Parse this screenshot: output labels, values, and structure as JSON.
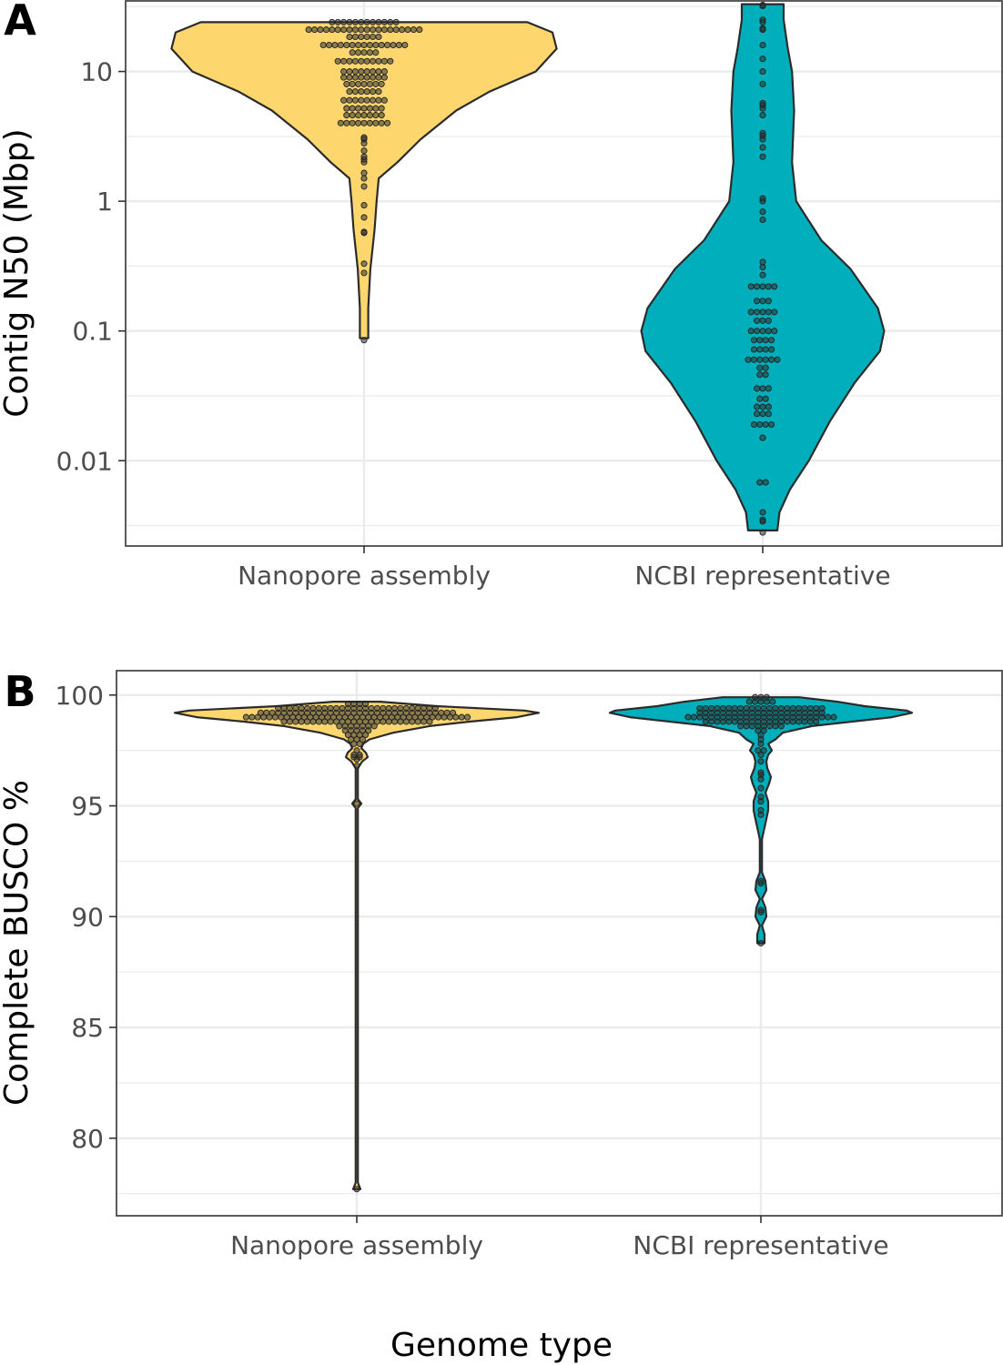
{
  "figure": {
    "xlabel": "Genome type",
    "colors": {
      "nanopore": "#FDD76E",
      "ncbi": "#00AFBB"
    }
  },
  "chart_data": [
    {
      "type": "violin",
      "panel_label": "A",
      "title": "",
      "xlabel": "Genome type",
      "ylabel": "Contig N50 (Mbp)",
      "yscale": "log10",
      "ylim": [
        0.0022,
        35
      ],
      "yticks": [
        {
          "value": 0.01,
          "label": "0.01"
        },
        {
          "value": 0.1,
          "label": "0.1"
        },
        {
          "value": 1,
          "label": "1"
        },
        {
          "value": 10,
          "label": "10"
        }
      ],
      "categories": [
        "Nanopore assembly",
        "NCBI representative"
      ],
      "series": [
        {
          "name": "Nanopore assembly",
          "color": "#FDD76E",
          "violin": {
            "min": 0.088,
            "max": 24,
            "density": [
              [
                24,
                0.78
              ],
              [
                20,
                0.9
              ],
              [
                15,
                0.92
              ],
              [
                10,
                0.82
              ],
              [
                7,
                0.6
              ],
              [
                5,
                0.44
              ],
              [
                3,
                0.27
              ],
              [
                2,
                0.16
              ],
              [
                1.5,
                0.07
              ],
              [
                1,
                0.06
              ],
              [
                0.6,
                0.05
              ],
              [
                0.3,
                0.03
              ],
              [
                0.15,
                0.02
              ],
              [
                0.1,
                0.02
              ],
              [
                0.088,
                0.02
              ]
            ]
          },
          "values": [
            0.085,
            0.28,
            0.33,
            0.57,
            0.58,
            0.75,
            0.93,
            1.3,
            1.5,
            1.65,
            2.0,
            2.1,
            2.2,
            2.45,
            2.8,
            3.0,
            3.1,
            4.0,
            4.0,
            4.0,
            4.0,
            4.0,
            4.0,
            4.0,
            4.0,
            4.0,
            4.6,
            4.6,
            4.6,
            4.6,
            4.6,
            4.6,
            4.6,
            5.2,
            5.2,
            5.2,
            5.2,
            5.2,
            5.2,
            5.2,
            6.0,
            6.0,
            6.0,
            6.0,
            6.0,
            6.0,
            6.0,
            6.0,
            7.0,
            7.0,
            7.0,
            7.0,
            7.0,
            7.0,
            8.0,
            8.0,
            8.0,
            8.0,
            8.0,
            8.0,
            8.0,
            9.0,
            9.0,
            9.0,
            9.0,
            9.0,
            9.0,
            9.0,
            9.0,
            10.0,
            10.0,
            10.0,
            10.0,
            10.0,
            10.0,
            10.0,
            10.0,
            12.0,
            12.0,
            12.0,
            12.0,
            12.0,
            12.0,
            12.0,
            12.0,
            12.0,
            12.0,
            14.0,
            14.0,
            14.0,
            14.0,
            14.0,
            16.0,
            16.0,
            16.0,
            16.0,
            16.0,
            16.0,
            16.0,
            16.0,
            16.0,
            16.0,
            16.0,
            16.0,
            16.0,
            16.0,
            16.0,
            18.5,
            18.5,
            18.5,
            18.5,
            18.5,
            18.5,
            21.0,
            21.0,
            21.0,
            21.0,
            21.0,
            21.0,
            21.0,
            21.0,
            21.0,
            21.0,
            21.0,
            21.0,
            21.0,
            21.0,
            21.0,
            21.0,
            21.0,
            21.0,
            21.0,
            21.0,
            24.0,
            24.0,
            24.0,
            24.0,
            24.0,
            24.0,
            24.0,
            24.0,
            24.0,
            24.0,
            24.0,
            24.0
          ]
        },
        {
          "name": "NCBI representative",
          "color": "#00AFBB",
          "violin": {
            "min": 0.0029,
            "max": 33,
            "density": [
              [
                33,
                0.1
              ],
              [
                25,
                0.1
              ],
              [
                15,
                0.12
              ],
              [
                10,
                0.14
              ],
              [
                5,
                0.15
              ],
              [
                2,
                0.14
              ],
              [
                1,
                0.16
              ],
              [
                0.5,
                0.28
              ],
              [
                0.3,
                0.42
              ],
              [
                0.15,
                0.55
              ],
              [
                0.1,
                0.58
              ],
              [
                0.07,
                0.56
              ],
              [
                0.04,
                0.44
              ],
              [
                0.02,
                0.32
              ],
              [
                0.01,
                0.22
              ],
              [
                0.006,
                0.13
              ],
              [
                0.004,
                0.08
              ],
              [
                0.0029,
                0.07
              ]
            ]
          },
          "values": [
            0.0028,
            0.0034,
            0.0035,
            0.004,
            0.0068,
            0.0068,
            0.015,
            0.019,
            0.019,
            0.019,
            0.019,
            0.023,
            0.023,
            0.023,
            0.026,
            0.026,
            0.026,
            0.03,
            0.03,
            0.036,
            0.036,
            0.036,
            0.046,
            0.046,
            0.052,
            0.052,
            0.06,
            0.06,
            0.06,
            0.06,
            0.06,
            0.06,
            0.072,
            0.072,
            0.072,
            0.072,
            0.085,
            0.085,
            0.085,
            0.085,
            0.1,
            0.1,
            0.1,
            0.1,
            0.1,
            0.12,
            0.12,
            0.12,
            0.14,
            0.14,
            0.14,
            0.14,
            0.14,
            0.17,
            0.17,
            0.17,
            0.22,
            0.22,
            0.22,
            0.22,
            0.22,
            0.27,
            0.31,
            0.34,
            0.72,
            0.83,
            1.0,
            1.05,
            2.2,
            2.6,
            3.0,
            3.2,
            3.35,
            4.6,
            5.2,
            5.5,
            5.7,
            8.0,
            10.0,
            12.5,
            16.0,
            21.0,
            21.5,
            24.0,
            25.0,
            32.0,
            32.5
          ]
        }
      ]
    },
    {
      "type": "violin",
      "panel_label": "B",
      "title": "",
      "xlabel": "Genome type",
      "ylabel": "Complete BUSCO %",
      "yscale": "linear",
      "ylim": [
        76.5,
        101.1
      ],
      "yticks": [
        {
          "value": 80,
          "label": "80"
        },
        {
          "value": 85,
          "label": "85"
        },
        {
          "value": 90,
          "label": "90"
        },
        {
          "value": 95,
          "label": "95"
        },
        {
          "value": 100,
          "label": "100"
        }
      ],
      "categories": [
        "Nanopore assembly",
        "NCBI representative"
      ],
      "series": [
        {
          "name": "Nanopore assembly",
          "color": "#FDD76E",
          "violin": {
            "min": 77.7,
            "max": 99.7,
            "density": [
              [
                99.7,
                0.13
              ],
              [
                99.5,
                0.44
              ],
              [
                99.3,
                0.92
              ],
              [
                99.2,
                1.0
              ],
              [
                99.0,
                0.88
              ],
              [
                98.8,
                0.62
              ],
              [
                98.6,
                0.4
              ],
              [
                98.3,
                0.2
              ],
              [
                98.0,
                0.07
              ],
              [
                97.8,
                0.035
              ],
              [
                97.6,
                0.025
              ],
              [
                97.4,
                0.05
              ],
              [
                97.2,
                0.06
              ],
              [
                97.0,
                0.03
              ],
              [
                96.7,
                0.006
              ],
              [
                96.5,
                0.006
              ],
              [
                95.3,
                0.006
              ],
              [
                95.1,
                0.025
              ],
              [
                94.9,
                0.006
              ],
              [
                78.0,
                0.006
              ],
              [
                77.7,
                0.02
              ]
            ]
          },
          "values": [
            77.7,
            95.1,
            96.8,
            97.1,
            97.2,
            97.2,
            97.3,
            97.3,
            97.5,
            97.8,
            97.8,
            98.0,
            98.0,
            98.0,
            98.2,
            98.2,
            98.2,
            98.2,
            98.4,
            98.4,
            98.4,
            98.4,
            98.4,
            98.6,
            98.6,
            98.6,
            98.6,
            98.6,
            98.6,
            98.6,
            98.8,
            98.8,
            98.8,
            98.8,
            98.8,
            98.8,
            98.8,
            98.8,
            98.8,
            98.8,
            98.8,
            98.8,
            98.8,
            98.8,
            98.8,
            98.8,
            98.8,
            98.8,
            98.8,
            98.8,
            98.8,
            98.8,
            98.8,
            98.8,
            98.8,
            98.8,
            99.0,
            99.0,
            99.0,
            99.0,
            99.0,
            99.0,
            99.0,
            99.0,
            99.0,
            99.0,
            99.0,
            99.0,
            99.0,
            99.0,
            99.0,
            99.0,
            99.0,
            99.0,
            99.0,
            99.0,
            99.0,
            99.0,
            99.0,
            99.0,
            99.0,
            99.0,
            99.0,
            99.0,
            99.0,
            99.0,
            99.0,
            99.0,
            99.0,
            99.0,
            99.0,
            99.0,
            99.0,
            99.0,
            99.0,
            99.2,
            99.2,
            99.2,
            99.2,
            99.2,
            99.2,
            99.2,
            99.2,
            99.2,
            99.2,
            99.2,
            99.2,
            99.2,
            99.2,
            99.2,
            99.2,
            99.2,
            99.2,
            99.2,
            99.2,
            99.2,
            99.2,
            99.2,
            99.2,
            99.2,
            99.2,
            99.2,
            99.2,
            99.2,
            99.2,
            99.2,
            99.2,
            99.2,
            99.2,
            99.4,
            99.4,
            99.4,
            99.4,
            99.4,
            99.4,
            99.4,
            99.4,
            99.4,
            99.4,
            99.4,
            99.4,
            99.4,
            99.4,
            99.4,
            99.4,
            99.4,
            99.4,
            99.4,
            99.4,
            99.4,
            99.4,
            99.4,
            99.4,
            99.4,
            99.4,
            99.4,
            99.4,
            99.6,
            99.6,
            99.6,
            99.6
          ]
        },
        {
          "name": "NCBI representative",
          "color": "#00AFBB",
          "violin": {
            "min": 88.8,
            "max": 99.9,
            "density": [
              [
                99.9,
                0.21
              ],
              [
                99.7,
                0.42
              ],
              [
                99.5,
                0.57
              ],
              [
                99.3,
                0.8
              ],
              [
                99.2,
                0.83
              ],
              [
                99.0,
                0.72
              ],
              [
                98.8,
                0.5
              ],
              [
                98.6,
                0.28
              ],
              [
                98.3,
                0.12
              ],
              [
                98.0,
                0.08
              ],
              [
                97.8,
                0.04
              ],
              [
                97.5,
                0.06
              ],
              [
                97.3,
                0.04
              ],
              [
                97.0,
                0.03
              ],
              [
                96.7,
                0.035
              ],
              [
                96.3,
                0.055
              ],
              [
                96.0,
                0.045
              ],
              [
                95.6,
                0.025
              ],
              [
                95.2,
                0.04
              ],
              [
                94.8,
                0.04
              ],
              [
                94.4,
                0.03
              ],
              [
                93.5,
                0.006
              ],
              [
                92.0,
                0.006
              ],
              [
                91.6,
                0.025
              ],
              [
                91.2,
                0.03
              ],
              [
                90.8,
                0.006
              ],
              [
                90.4,
                0.025
              ],
              [
                90.0,
                0.03
              ],
              [
                89.6,
                0.006
              ],
              [
                89.2,
                0.02
              ],
              [
                88.8,
                0.02
              ]
            ]
          },
          "values": [
            88.8,
            90.2,
            90.3,
            91.5,
            91.6,
            94.6,
            94.8,
            95.2,
            95.4,
            95.8,
            96.2,
            96.4,
            96.5,
            97.0,
            97.3,
            97.5,
            97.5,
            97.8,
            98.0,
            98.2,
            98.4,
            98.4,
            98.6,
            98.6,
            98.6,
            98.6,
            98.6,
            98.6,
            98.6,
            98.6,
            98.8,
            98.8,
            98.8,
            98.8,
            98.8,
            98.8,
            98.8,
            98.8,
            98.8,
            98.8,
            98.8,
            98.8,
            98.8,
            98.8,
            98.8,
            98.8,
            98.8,
            98.8,
            98.8,
            98.8,
            99.0,
            99.0,
            99.0,
            99.0,
            99.0,
            99.0,
            99.0,
            99.0,
            99.0,
            99.0,
            99.0,
            99.0,
            99.0,
            99.0,
            99.0,
            99.0,
            99.0,
            99.0,
            99.0,
            99.0,
            99.0,
            99.0,
            99.0,
            99.0,
            99.0,
            99.0,
            99.2,
            99.2,
            99.2,
            99.2,
            99.2,
            99.2,
            99.2,
            99.2,
            99.2,
            99.2,
            99.2,
            99.2,
            99.2,
            99.2,
            99.2,
            99.2,
            99.2,
            99.2,
            99.2,
            99.2,
            99.2,
            99.2,
            99.4,
            99.4,
            99.4,
            99.4,
            99.4,
            99.4,
            99.4,
            99.4,
            99.4,
            99.4,
            99.4,
            99.4,
            99.4,
            99.4,
            99.4,
            99.4,
            99.4,
            99.4,
            99.4,
            99.4,
            99.4,
            99.4,
            99.7,
            99.7,
            99.7,
            99.7,
            99.7,
            99.9,
            99.9,
            99.9
          ]
        }
      ]
    }
  ]
}
